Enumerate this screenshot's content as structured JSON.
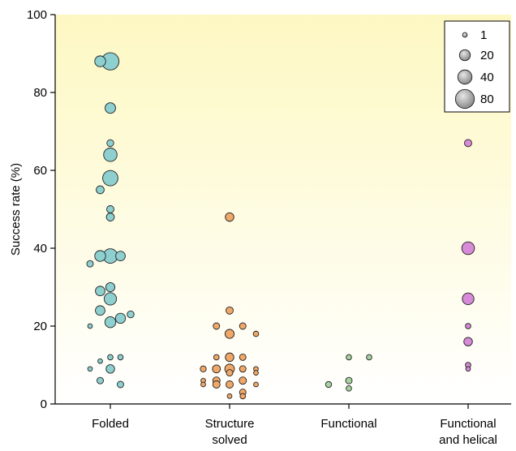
{
  "chart_data": {
    "type": "scatter",
    "title": "",
    "xlabel": "",
    "ylabel": "Success rate (%)",
    "ylim": [
      0,
      100
    ],
    "yticks": [
      0,
      20,
      40,
      60,
      80,
      100
    ],
    "grid": false,
    "background": "yellow-gradient",
    "categories": [
      {
        "lines": [
          "Folded"
        ]
      },
      {
        "lines": [
          "Structure",
          "solved"
        ]
      },
      {
        "lines": [
          "Functional"
        ]
      },
      {
        "lines": [
          "Functional",
          "and helical"
        ]
      }
    ],
    "legend": {
      "position": "top-right",
      "title": "",
      "entries": [
        {
          "label": "1",
          "size": 1
        },
        {
          "label": "20",
          "size": 20
        },
        {
          "label": "40",
          "size": 40
        },
        {
          "label": "80",
          "size": 80
        }
      ]
    },
    "series": [
      {
        "category": "Folded",
        "color": "#8ecfcf",
        "points": [
          {
            "x": -1.0,
            "y": 36,
            "size": 4
          },
          {
            "x": -1.0,
            "y": 20,
            "size": 1
          },
          {
            "x": -1.0,
            "y": 9,
            "size": 1
          },
          {
            "x": -0.5,
            "y": 88,
            "size": 20
          },
          {
            "x": -0.5,
            "y": 55,
            "size": 8
          },
          {
            "x": -0.5,
            "y": 38,
            "size": 20
          },
          {
            "x": -0.5,
            "y": 29,
            "size": 14
          },
          {
            "x": -0.5,
            "y": 24,
            "size": 14
          },
          {
            "x": -0.5,
            "y": 11,
            "size": 1
          },
          {
            "x": -0.5,
            "y": 6,
            "size": 4
          },
          {
            "x": 0.0,
            "y": 88,
            "size": 65
          },
          {
            "x": 0.0,
            "y": 76,
            "size": 18
          },
          {
            "x": 0.0,
            "y": 67,
            "size": 5
          },
          {
            "x": 0.0,
            "y": 64,
            "size": 35
          },
          {
            "x": 0.0,
            "y": 58,
            "size": 48
          },
          {
            "x": 0.0,
            "y": 50,
            "size": 6
          },
          {
            "x": 0.0,
            "y": 48,
            "size": 8
          },
          {
            "x": 0.0,
            "y": 38,
            "size": 42
          },
          {
            "x": 0.0,
            "y": 30,
            "size": 12
          },
          {
            "x": 0.0,
            "y": 27,
            "size": 28
          },
          {
            "x": 0.0,
            "y": 21,
            "size": 20
          },
          {
            "x": 0.0,
            "y": 12,
            "size": 2
          },
          {
            "x": 0.0,
            "y": 9,
            "size": 10
          },
          {
            "x": 0.5,
            "y": 38,
            "size": 14
          },
          {
            "x": 0.5,
            "y": 22,
            "size": 16
          },
          {
            "x": 0.5,
            "y": 12,
            "size": 2
          },
          {
            "x": 0.5,
            "y": 5,
            "size": 4
          },
          {
            "x": 1.0,
            "y": 23,
            "size": 5
          }
        ]
      },
      {
        "category": "Structure solved",
        "color": "#f0a868",
        "points": [
          {
            "x": -1.3,
            "y": 9,
            "size": 3
          },
          {
            "x": -1.3,
            "y": 6,
            "size": 1
          },
          {
            "x": -1.3,
            "y": 5,
            "size": 1
          },
          {
            "x": -0.65,
            "y": 20,
            "size": 4
          },
          {
            "x": -0.65,
            "y": 12,
            "size": 2
          },
          {
            "x": -0.65,
            "y": 9,
            "size": 8
          },
          {
            "x": -0.65,
            "y": 6,
            "size": 6
          },
          {
            "x": -0.65,
            "y": 5,
            "size": 6
          },
          {
            "x": 0.0,
            "y": 48,
            "size": 10
          },
          {
            "x": 0.0,
            "y": 24,
            "size": 6
          },
          {
            "x": 0.0,
            "y": 18,
            "size": 12
          },
          {
            "x": 0.0,
            "y": 12,
            "size": 10
          },
          {
            "x": 0.0,
            "y": 9,
            "size": 14
          },
          {
            "x": 0.0,
            "y": 8,
            "size": 4
          },
          {
            "x": 0.0,
            "y": 5,
            "size": 6
          },
          {
            "x": 0.0,
            "y": 2,
            "size": 1
          },
          {
            "x": 0.65,
            "y": 20,
            "size": 4
          },
          {
            "x": 0.65,
            "y": 12,
            "size": 4
          },
          {
            "x": 0.65,
            "y": 9,
            "size": 4
          },
          {
            "x": 0.65,
            "y": 6,
            "size": 6
          },
          {
            "x": 0.65,
            "y": 3,
            "size": 4
          },
          {
            "x": 0.65,
            "y": 2,
            "size": 2
          },
          {
            "x": 1.3,
            "y": 18,
            "size": 2
          },
          {
            "x": 1.3,
            "y": 9,
            "size": 1
          },
          {
            "x": 1.3,
            "y": 8,
            "size": 1
          },
          {
            "x": 1.3,
            "y": 5,
            "size": 1
          }
        ]
      },
      {
        "category": "Functional",
        "color": "#a6d4a0",
        "points": [
          {
            "x": -1.0,
            "y": 5,
            "size": 3
          },
          {
            "x": 0.0,
            "y": 12,
            "size": 2
          },
          {
            "x": 0.0,
            "y": 6,
            "size": 4
          },
          {
            "x": 0.0,
            "y": 4,
            "size": 2
          },
          {
            "x": 1.0,
            "y": 12,
            "size": 2
          }
        ]
      },
      {
        "category": "Functional and helical",
        "color": "#d78ad7",
        "points": [
          {
            "x": 0.0,
            "y": 67,
            "size": 6
          },
          {
            "x": 0.0,
            "y": 40,
            "size": 30
          },
          {
            "x": 0.0,
            "y": 27,
            "size": 24
          },
          {
            "x": 0.0,
            "y": 20,
            "size": 2
          },
          {
            "x": 0.0,
            "y": 16,
            "size": 10
          },
          {
            "x": 0.0,
            "y": 10,
            "size": 2
          },
          {
            "x": 0.0,
            "y": 9,
            "size": 1
          }
        ]
      }
    ]
  }
}
